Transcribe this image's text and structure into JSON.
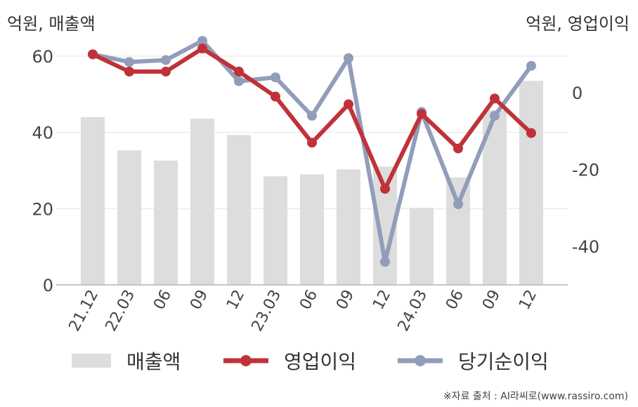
{
  "chart_data": {
    "type": "bar+line",
    "categories": [
      "21.12",
      "22.03",
      "06",
      "09",
      "12",
      "23.03",
      "06",
      "09",
      "12",
      "24.03",
      "06",
      "09",
      "12"
    ],
    "left_axis": {
      "unit_label": "억원, 매출액",
      "ylim": [
        0,
        60
      ],
      "ticks": [
        0,
        20,
        40,
        60
      ]
    },
    "right_axis": {
      "unit_label": "억원, 영업이익",
      "ylim": [
        -50,
        15
      ],
      "ticks": [
        -40,
        -20,
        0
      ]
    },
    "series": [
      {
        "name": "매출액",
        "kind": "bar",
        "axis": "left",
        "color": "#dddddd",
        "values": [
          44,
          35.3,
          32.6,
          43.6,
          39.3,
          28.5,
          29,
          30.3,
          31,
          20.2,
          28.2,
          45.8,
          53.5
        ]
      },
      {
        "name": "영업이익",
        "kind": "line",
        "axis": "right",
        "color": "#c0323a",
        "values": [
          10,
          5.5,
          5.5,
          11.5,
          5.5,
          -1,
          -13,
          -3,
          -25,
          -5.5,
          -14.5,
          -1.5,
          -10.5
        ]
      },
      {
        "name": "당기순이익",
        "kind": "line",
        "axis": "right",
        "color": "#919db9",
        "values": [
          10,
          8,
          8.5,
          13.5,
          3,
          4,
          -6,
          9,
          -44,
          -5,
          -29,
          -6,
          7
        ]
      }
    ],
    "grid": true,
    "legend_position": "bottom"
  },
  "source": "※자료 출처 : AI라씨로(www.rassiro.com)"
}
